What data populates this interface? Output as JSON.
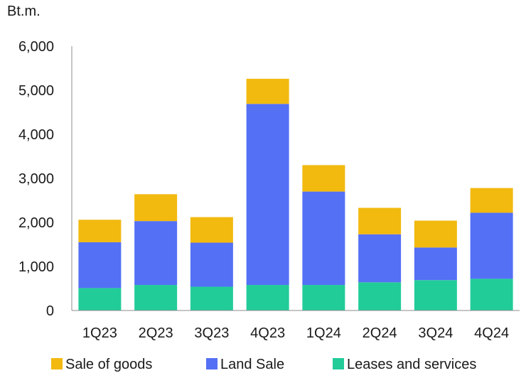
{
  "chart_data": {
    "type": "bar",
    "stacked": true,
    "unit_label": "Bt.m.",
    "categories": [
      "1Q23",
      "2Q23",
      "3Q23",
      "4Q23",
      "1Q24",
      "2Q24",
      "3Q24",
      "4Q24"
    ],
    "series": [
      {
        "name": "Leases and services",
        "color": "#22cc99",
        "values": [
          510,
          580,
          540,
          580,
          580,
          640,
          690,
          720
        ]
      },
      {
        "name": "Land Sale",
        "color": "#5470f5",
        "values": [
          1040,
          1450,
          1000,
          4110,
          2120,
          1090,
          740,
          1500
        ]
      },
      {
        "name": "Sale of goods",
        "color": "#f2b90f",
        "values": [
          510,
          610,
          580,
          570,
          600,
          600,
          610,
          560
        ]
      }
    ],
    "legend_order": [
      "Sale of goods",
      "Land Sale",
      "Leases and services"
    ],
    "y_ticks": [
      "0",
      "1,000",
      "2,000",
      "3,000",
      "4,000",
      "5,000",
      "6,000"
    ],
    "ylim": [
      0,
      6000
    ],
    "grid": false,
    "legend_position": "bottom"
  }
}
